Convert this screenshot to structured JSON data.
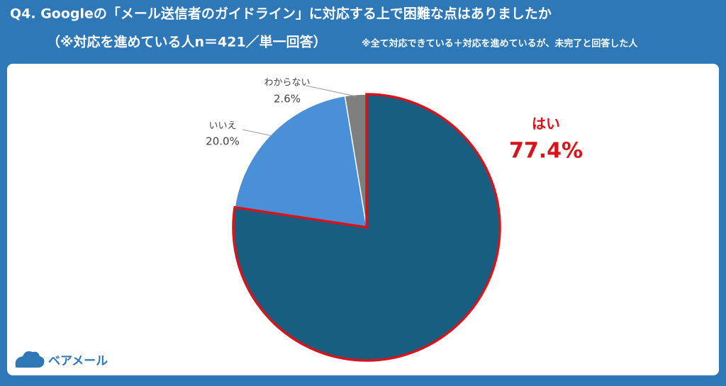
{
  "chart_data": {
    "type": "pie",
    "title": "Q4. Googleの「メール送信者のガイドライン」に対応する上で困難な点はありましたか",
    "subtitle": "（※対応を進めている人n＝421／単一回答）",
    "note": "※全て対応できている＋対応を進めているが、未完了と回答した人",
    "categories": [
      "はい",
      "いいえ",
      "わからない"
    ],
    "values": [
      77.4,
      20.0,
      2.6
    ],
    "value_labels": [
      "77.4%",
      "20.0%",
      "2.6%"
    ],
    "colors": [
      "#175e80",
      "#4a90d9",
      "#7f7f7f"
    ],
    "highlight_color": "#d7141b"
  },
  "logo": "ベアメール"
}
